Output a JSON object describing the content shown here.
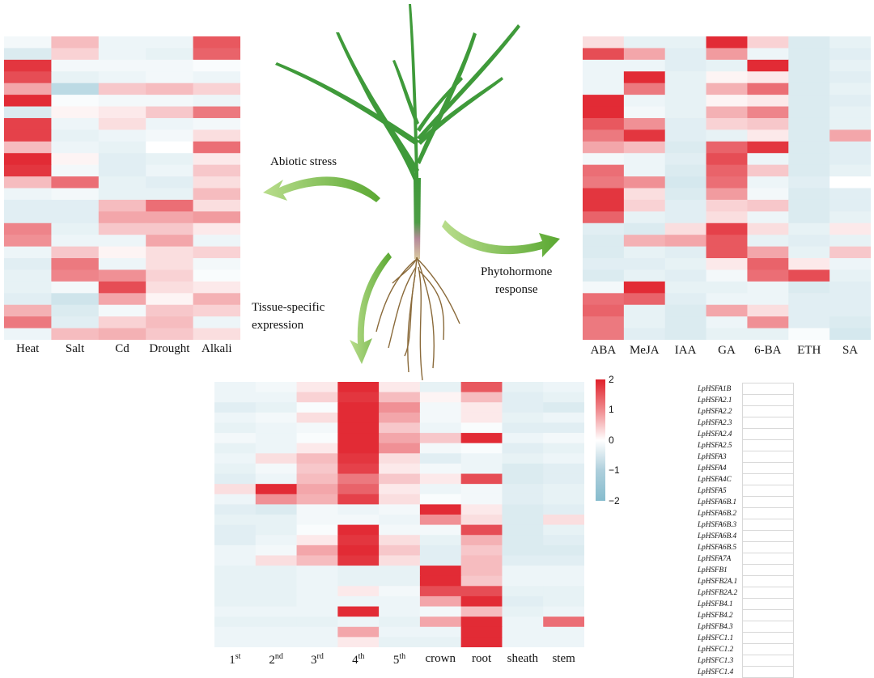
{
  "labels": {
    "abiotic": "Abiotic stress",
    "phyto_line1": "Phytohormone",
    "phyto_line2": "response",
    "tissue_line1": "Tissue-specific",
    "tissue_line2": "expression"
  },
  "legend": {
    "ticks": [
      "2",
      "1",
      "0",
      "−1",
      "−2"
    ]
  },
  "genes": [
    "LpHSFA1B",
    "LpHSFA2.1",
    "LpHSFA2.2",
    "LpHSFA2.3",
    "LpHSFA2.4",
    "LpHSFA2.5",
    "LpHSFA3",
    "LpHSFA4",
    "LpHSFA4C",
    "LpHSFA5",
    "LpHSFA6B.1",
    "LpHSFA6B.2",
    "LpHSFA6B.3",
    "LpHSFA6B.4",
    "LpHSFA6B.5",
    "LpHSFA7A",
    "LpHSFB1",
    "LpHSFB2A.1",
    "LpHSFB2A.2",
    "LpHSFB4.1",
    "LpHSFB4.2",
    "LpHSFB4.3",
    "LpHSFC1.1",
    "LpHSFC1.2",
    "LpHSFC1.3",
    "LpHSFC1.4"
  ],
  "colors": {
    "high": "#e0202a",
    "mid": "#ffffff",
    "low": "#86bccd",
    "arrow": "#6bb33a",
    "plant": "#3f9a3a"
  },
  "chart_data": [
    {
      "type": "heatmap",
      "name": "abiotic",
      "columns": [
        "Heat",
        "Salt",
        "Cd",
        "Drought",
        "Alkali"
      ],
      "scale": [
        -2,
        2
      ],
      "values": [
        [
          -0.2,
          0.6,
          -0.3,
          -0.3,
          1.5
        ],
        [
          -0.6,
          0.4,
          -0.3,
          -0.4,
          1.4
        ],
        [
          1.8,
          -0.2,
          -0.2,
          -0.2,
          -0.1
        ],
        [
          1.6,
          -0.4,
          -0.3,
          -0.2,
          -0.3
        ],
        [
          0.8,
          -1.1,
          0.5,
          0.6,
          0.4
        ],
        [
          1.9,
          -0.1,
          -0.2,
          -0.2,
          -0.3
        ],
        [
          -0.6,
          0.1,
          0.2,
          0.5,
          1.2
        ],
        [
          1.7,
          -0.3,
          0.3,
          -0.3,
          -0.2
        ],
        [
          1.7,
          -0.4,
          -0.3,
          -0.2,
          0.3
        ],
        [
          0.6,
          -0.3,
          -0.4,
          0,
          1.3
        ],
        [
          1.9,
          0.1,
          -0.5,
          -0.4,
          0.2
        ],
        [
          1.8,
          -0.2,
          -0.5,
          -0.3,
          0.5
        ],
        [
          0.6,
          1.3,
          -0.4,
          -0.5,
          0.3
        ],
        [
          -0.3,
          -0.2,
          -0.4,
          -0.4,
          0.6
        ],
        [
          -0.5,
          -0.5,
          0.6,
          1.3,
          0.3
        ],
        [
          -0.5,
          -0.5,
          0.8,
          0.8,
          0.9
        ],
        [
          1.1,
          -0.4,
          0.5,
          0.5,
          0.2
        ],
        [
          1.0,
          -0.3,
          -0.3,
          0.8,
          -0.3
        ],
        [
          -0.3,
          0.5,
          0.1,
          0.3,
          0.4
        ],
        [
          -0.5,
          1.2,
          -0.3,
          0.3,
          -0.2
        ],
        [
          -0.4,
          1.1,
          1.0,
          0.4,
          -0.1
        ],
        [
          -0.4,
          -0.2,
          1.6,
          0.3,
          0.2
        ],
        [
          -0.5,
          -0.8,
          0.8,
          0.1,
          0.7
        ],
        [
          0.7,
          -0.6,
          -0.2,
          0.5,
          0.4
        ],
        [
          1.2,
          -0.5,
          0.4,
          0.6,
          -0.3
        ],
        [
          -0.3,
          0.6,
          0.7,
          0.5,
          0.3
        ]
      ]
    },
    {
      "type": "heatmap",
      "name": "phytohormone",
      "columns": [
        "ABA",
        "MeJA",
        "IAA",
        "GA",
        "6-BA",
        "ETH",
        "SA"
      ],
      "scale": [
        -2,
        2
      ],
      "values": [
        [
          0.3,
          -0.4,
          -0.4,
          1.9,
          0.4,
          -0.6,
          -0.4
        ],
        [
          1.6,
          0.8,
          -0.5,
          0.9,
          -0.3,
          -0.6,
          -0.5
        ],
        [
          -0.3,
          -0.3,
          -0.5,
          -0.4,
          1.9,
          -0.6,
          -0.4
        ],
        [
          -0.3,
          1.9,
          -0.4,
          0.1,
          0.2,
          -0.6,
          -0.5
        ],
        [
          -0.3,
          1.2,
          -0.4,
          0.7,
          1.3,
          -0.6,
          -0.4
        ],
        [
          1.9,
          -0.3,
          -0.4,
          0.1,
          0.2,
          -0.6,
          -0.5
        ],
        [
          1.9,
          -0.2,
          -0.4,
          0.7,
          1.1,
          -0.6,
          -0.4
        ],
        [
          1.5,
          1.0,
          -0.5,
          0.4,
          0.5,
          -0.6,
          -0.4
        ],
        [
          1.2,
          1.8,
          -0.5,
          -0.4,
          0.2,
          -0.6,
          0.8
        ],
        [
          0.8,
          0.6,
          -0.6,
          1.4,
          1.8,
          -0.6,
          -0.5
        ],
        [
          -0.2,
          -0.3,
          -0.5,
          1.6,
          -0.3,
          -0.6,
          -0.5
        ],
        [
          1.3,
          -0.3,
          -0.6,
          1.4,
          0.5,
          -0.6,
          -0.4
        ],
        [
          1.2,
          1.0,
          -0.7,
          1.3,
          -0.3,
          -0.5,
          0.0
        ],
        [
          1.8,
          0.3,
          -0.6,
          0.9,
          -0.2,
          -0.6,
          -0.5
        ],
        [
          1.8,
          0.4,
          -0.5,
          0.4,
          0.5,
          -0.6,
          -0.5
        ],
        [
          1.4,
          -0.4,
          -0.5,
          0.3,
          -0.3,
          -0.6,
          -0.4
        ],
        [
          -0.5,
          -0.6,
          0.3,
          1.7,
          0.3,
          -0.4,
          0.2
        ],
        [
          -0.6,
          0.7,
          0.8,
          1.5,
          -0.4,
          -0.5,
          -0.4
        ],
        [
          -0.6,
          -0.4,
          -0.5,
          1.5,
          0.8,
          -0.4,
          0.5
        ],
        [
          -0.5,
          -0.5,
          -0.4,
          0.2,
          1.4,
          0.2,
          -0.3
        ],
        [
          -0.6,
          -0.4,
          -0.5,
          -0.2,
          1.3,
          1.6,
          -0.4
        ],
        [
          -0.2,
          1.9,
          -0.4,
          -0.4,
          -0.3,
          -0.6,
          -0.5
        ],
        [
          1.3,
          1.4,
          -0.5,
          -0.3,
          -0.3,
          -0.5,
          -0.5
        ],
        [
          1.4,
          -0.4,
          -0.6,
          0.8,
          0.3,
          -0.5,
          -0.5
        ],
        [
          1.2,
          -0.4,
          -0.6,
          -0.3,
          1.0,
          -0.5,
          -0.6
        ],
        [
          1.2,
          -0.5,
          -0.6,
          -0.4,
          -0.4,
          -0.1,
          -0.7
        ]
      ]
    },
    {
      "type": "heatmap",
      "name": "tissue",
      "columns": [
        "1st",
        "2nd",
        "3rd",
        "4th",
        "5th",
        "crown",
        "root",
        "sheath",
        "stem"
      ],
      "scale": [
        -2,
        2
      ],
      "values": [
        [
          -0.3,
          -0.2,
          0.2,
          1.9,
          0.2,
          -0.4,
          1.5,
          -0.4,
          -0.3
        ],
        [
          -0.3,
          -0.3,
          0.4,
          1.8,
          0.6,
          0.1,
          0.6,
          -0.5,
          -0.4
        ],
        [
          -0.5,
          -0.4,
          -0.1,
          1.9,
          1.0,
          -0.2,
          0.2,
          -0.5,
          -0.6
        ],
        [
          -0.3,
          -0.2,
          0.3,
          1.9,
          0.8,
          -0.2,
          0.2,
          -0.4,
          -0.3
        ],
        [
          -0.4,
          -0.3,
          -0.2,
          1.9,
          0.5,
          -0.3,
          -0.1,
          -0.5,
          -0.5
        ],
        [
          -0.2,
          -0.3,
          -0.1,
          1.9,
          0.8,
          0.5,
          1.9,
          -0.3,
          -0.2
        ],
        [
          -0.4,
          -0.3,
          0.2,
          1.9,
          1.0,
          -0.2,
          -0.1,
          -0.5,
          -0.4
        ],
        [
          -0.3,
          0.3,
          0.6,
          1.8,
          0.3,
          -0.5,
          -0.3,
          -0.4,
          -0.3
        ],
        [
          -0.4,
          -0.2,
          0.5,
          1.7,
          0.2,
          -0.2,
          -0.3,
          -0.6,
          -0.5
        ],
        [
          -0.5,
          -0.3,
          0.6,
          1.2,
          0.5,
          0.2,
          1.6,
          -0.6,
          -0.5
        ],
        [
          0.3,
          1.9,
          0.8,
          1.4,
          0.2,
          -0.3,
          -0.2,
          -0.5,
          -0.4
        ],
        [
          -0.3,
          1.0,
          0.7,
          1.7,
          0.3,
          -0.1,
          -0.2,
          -0.5,
          -0.4
        ],
        [
          -0.5,
          -0.6,
          -0.2,
          -0.3,
          -0.2,
          1.9,
          0.2,
          -0.6,
          -0.5
        ],
        [
          -0.4,
          -0.4,
          -0.2,
          -0.2,
          -0.3,
          1.0,
          0.3,
          -0.6,
          0.3
        ],
        [
          -0.5,
          -0.4,
          -0.1,
          1.9,
          -0.2,
          -0.2,
          1.6,
          -0.6,
          -0.4
        ],
        [
          -0.5,
          -0.3,
          0.2,
          1.8,
          0.3,
          -0.4,
          0.7,
          -0.6,
          -0.5
        ],
        [
          -0.3,
          -0.2,
          0.8,
          1.9,
          0.5,
          -0.5,
          0.5,
          -0.6,
          -0.6
        ],
        [
          -0.3,
          0.3,
          0.6,
          1.8,
          0.3,
          -0.5,
          0.6,
          -0.5,
          -0.5
        ],
        [
          -0.4,
          -0.4,
          -0.3,
          -0.4,
          -0.4,
          1.9,
          0.6,
          -0.3,
          -0.3
        ],
        [
          -0.4,
          -0.4,
          -0.3,
          -0.4,
          -0.4,
          1.9,
          0.5,
          -0.3,
          -0.3
        ],
        [
          -0.4,
          -0.4,
          -0.3,
          0.2,
          -0.2,
          1.6,
          1.6,
          -0.4,
          -0.4
        ],
        [
          -0.4,
          -0.4,
          -0.3,
          -0.3,
          -0.3,
          0.8,
          1.9,
          -0.5,
          -0.4
        ],
        [
          -0.3,
          -0.3,
          -0.3,
          1.9,
          -0.3,
          -0.2,
          0.6,
          -0.4,
          -0.3
        ],
        [
          -0.4,
          -0.4,
          -0.4,
          -0.3,
          -0.4,
          0.8,
          1.9,
          -0.3,
          1.3
        ],
        [
          -0.3,
          -0.3,
          -0.3,
          0.8,
          -0.3,
          -0.3,
          1.9,
          -0.3,
          -0.3
        ],
        [
          -0.3,
          -0.3,
          -0.3,
          0.2,
          -0.4,
          -0.4,
          1.9,
          -0.3,
          -0.3
        ]
      ]
    }
  ]
}
